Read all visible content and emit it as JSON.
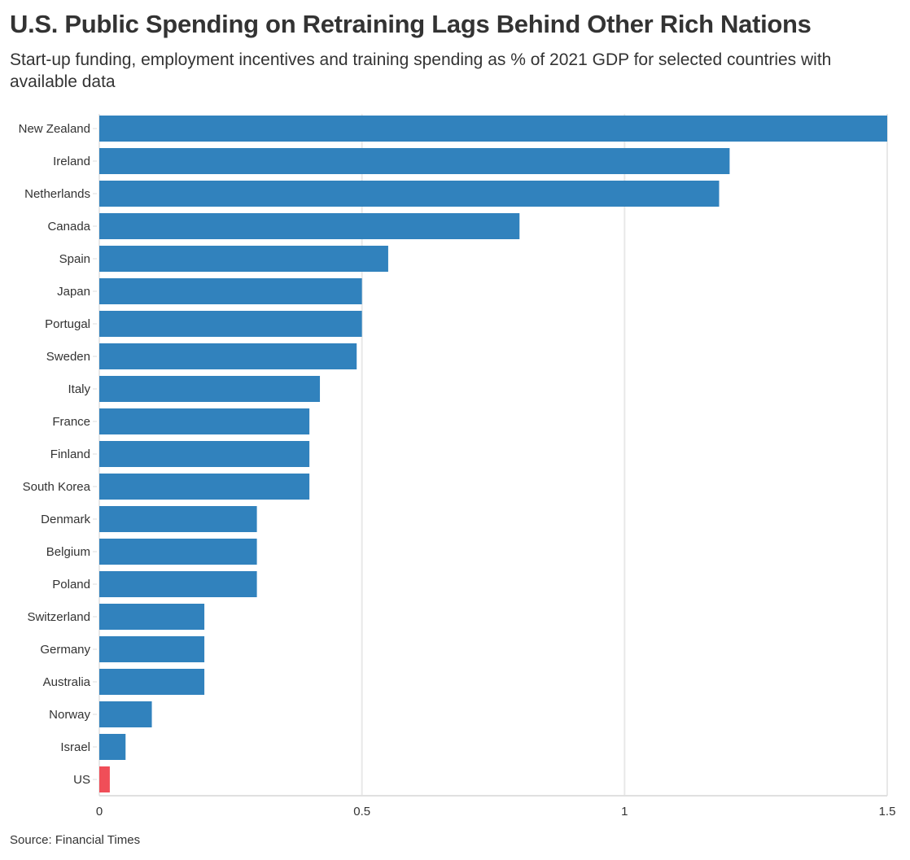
{
  "chart_data": {
    "type": "bar",
    "orientation": "horizontal",
    "title": "U.S. Public Spending on Retraining Lags Behind Other Rich Nations",
    "subtitle": "Start-up funding, employment incentives and training spending as % of 2021 GDP for selected countries with available data",
    "source": "Source: Financial Times",
    "xlabel": "",
    "ylabel": "",
    "xlim": [
      0,
      1.5
    ],
    "x_ticks": [
      0,
      0.5,
      1,
      1.5
    ],
    "x_tick_labels": [
      "0",
      "0.5",
      "1",
      "1.5"
    ],
    "grid": true,
    "legend": "none",
    "categories": [
      "New Zealand",
      "Ireland",
      "Netherlands",
      "Canada",
      "Spain",
      "Japan",
      "Portugal",
      "Sweden",
      "Italy",
      "France",
      "Finland",
      "South Korea",
      "Denmark",
      "Belgium",
      "Poland",
      "Switzerland",
      "Germany",
      "Australia",
      "Norway",
      "Israel",
      "US"
    ],
    "values": [
      1.5,
      1.2,
      1.18,
      0.8,
      0.55,
      0.5,
      0.5,
      0.49,
      0.42,
      0.4,
      0.4,
      0.4,
      0.3,
      0.3,
      0.3,
      0.2,
      0.2,
      0.2,
      0.1,
      0.05,
      0.02
    ],
    "highlight_category": "US",
    "colors": {
      "default": "#3182bd",
      "highlight": "#f04e58",
      "grid": "#e8e8e8",
      "axis": "#e0e0e0"
    }
  }
}
